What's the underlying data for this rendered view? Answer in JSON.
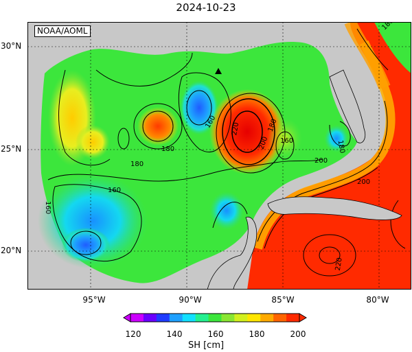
{
  "title": "2024-10-23",
  "credit": "NOAA/AOML",
  "map": {
    "lat_labels": [
      "30°N",
      "25°N",
      "20°N"
    ],
    "lon_labels": [
      "95°W",
      "90°W",
      "85°W",
      "80°W"
    ],
    "contour_labels": [
      "180",
      "160",
      "220",
      "200",
      "180",
      "160",
      "180",
      "160",
      "160",
      "180",
      "200",
      "200",
      "180",
      "220"
    ]
  },
  "colorbar": {
    "ticks": [
      "120",
      "140",
      "160",
      "180",
      "200"
    ],
    "label": "SH [cm]",
    "colors": [
      "#cc00ff",
      "#6a00ff",
      "#1f3cff",
      "#1ea0ff",
      "#12e0ff",
      "#24f090",
      "#3ce63c",
      "#8ae632",
      "#d2f01e",
      "#ffe600",
      "#ffaa00",
      "#ff6400",
      "#ff2a00"
    ]
  },
  "colors": {
    "land": "#c8c8c8",
    "ocean_base": "#3ce63c",
    "warm": "#ff2a00"
  }
}
